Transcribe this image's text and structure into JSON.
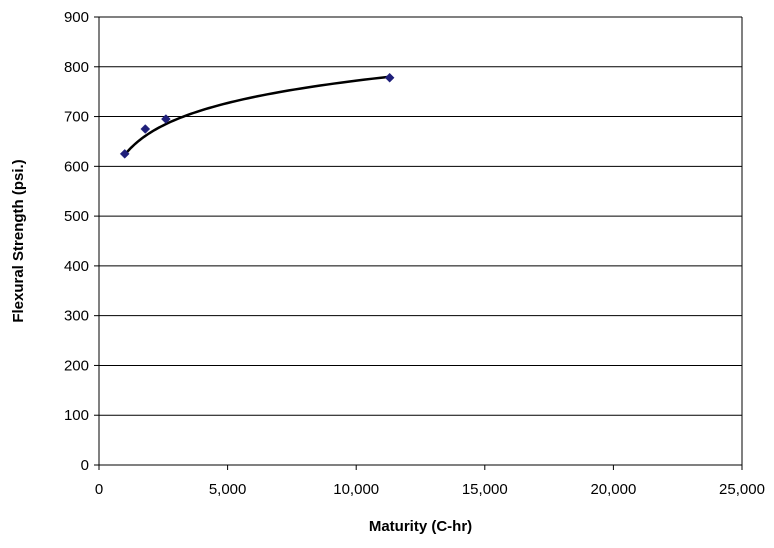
{
  "chart_data": {
    "type": "scatter",
    "title": "",
    "xlabel": "Maturity (C-hr)",
    "ylabel": "Flexural Strength (psi.)",
    "xlim": [
      0,
      25000
    ],
    "ylim": [
      0,
      900
    ],
    "x_ticks": [
      0,
      5000,
      10000,
      15000,
      20000,
      25000
    ],
    "x_tick_labels": [
      "0",
      "5,000",
      "10,000",
      "15,000",
      "20,000",
      "25,000"
    ],
    "y_ticks": [
      0,
      100,
      200,
      300,
      400,
      500,
      600,
      700,
      800,
      900
    ],
    "y_tick_labels": [
      "0",
      "100",
      "200",
      "300",
      "400",
      "500",
      "600",
      "700",
      "800",
      "900"
    ],
    "grid": "horizontal",
    "legend": "none",
    "series": [
      {
        "marker": "diamond",
        "color": "#1f1f7a",
        "points": [
          {
            "x": 1000,
            "y": 625
          },
          {
            "x": 1800,
            "y": 675
          },
          {
            "x": 2600,
            "y": 695
          },
          {
            "x": 11300,
            "y": 778
          }
        ]
      }
    ],
    "trendline": {
      "type": "logarithmic",
      "color": "#000000",
      "x_range": [
        1000,
        11300
      ],
      "y_at_start": 623,
      "y_at_end": 780
    }
  }
}
